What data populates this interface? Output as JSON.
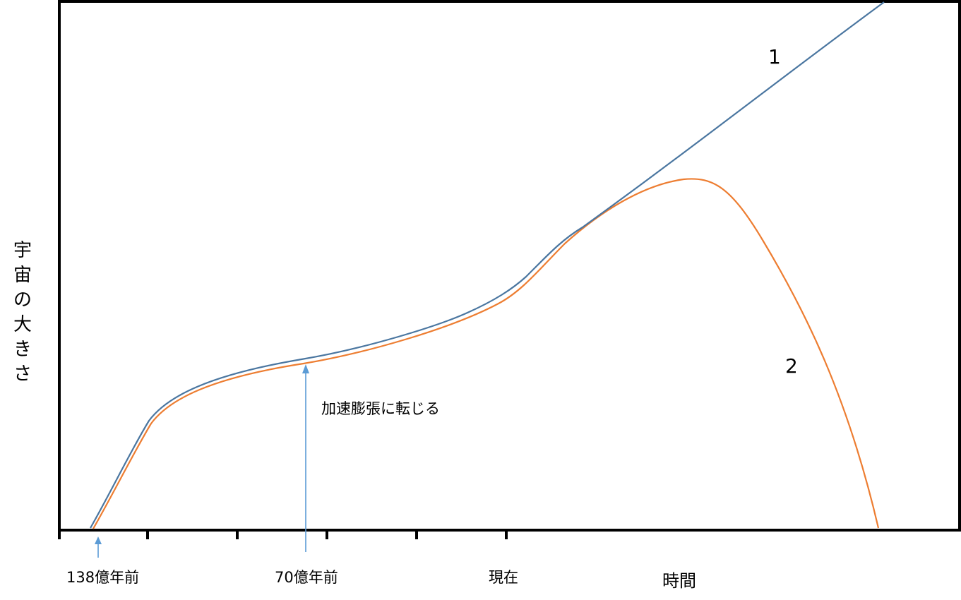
{
  "diagram": {
    "ylabel_chars": [
      "宇",
      "宙",
      "の",
      "大",
      "き",
      "さ"
    ],
    "xlabel": "時間",
    "tick_labels": {
      "start": "138億年前",
      "mid": "70億年前",
      "now": "現在"
    },
    "annotation": "加速膨張に転じる",
    "curves": [
      {
        "label": "1",
        "color": "#4a76a0"
      },
      {
        "label": "2",
        "color": "#ed7d31"
      }
    ],
    "arrow_color": "#5b9bd5"
  }
}
